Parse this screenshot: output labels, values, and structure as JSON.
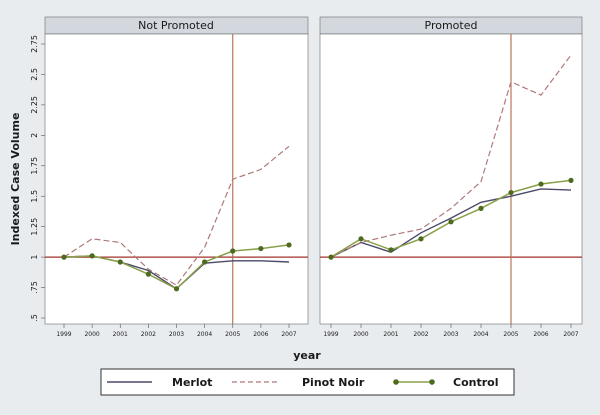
{
  "chart_data": {
    "type": "line",
    "ylabel": "Indexed Case Volume",
    "xlabel": "year",
    "y_range": [
      0.5,
      2.75
    ],
    "y_ticks": [
      "2.75",
      "2.5",
      "2.25",
      "2",
      "1.75",
      "1.5",
      "1.25",
      "1",
      ".75",
      ".5"
    ],
    "y_tick_values": [
      2.75,
      2.5,
      2.25,
      2,
      1.75,
      1.5,
      1.25,
      1,
      0.75,
      0.5
    ],
    "x": [
      1999,
      2000,
      2001,
      2002,
      2003,
      2004,
      2005,
      2006,
      2007
    ],
    "x_tick_labels": [
      "1999",
      "2000",
      "2001",
      "2002",
      "2003",
      "2004",
      "2005",
      "2006",
      "2007"
    ],
    "reference_line_y": 1.0,
    "vertical_line_x": 2005,
    "colors": {
      "merlot": "#4a4a6a",
      "pinot": "#b07878",
      "control": "#8aa04a",
      "control_marker": "#4d6b1e",
      "reference": "#a0302a",
      "vertical": "#b56a4a",
      "panel_bg": "#ffffff",
      "outer_bg": "#e9ecef",
      "strip_bg": "#d3d8de"
    },
    "panels": [
      {
        "title": "Not Promoted",
        "series": [
          {
            "name": "Merlot",
            "values": [
              1.0,
              1.01,
              0.96,
              0.89,
              0.74,
              0.95,
              0.97,
              0.97,
              0.96
            ]
          },
          {
            "name": "Pinot Noir",
            "values": [
              1.0,
              1.15,
              1.12,
              0.9,
              0.77,
              1.08,
              1.64,
              1.72,
              1.91
            ]
          },
          {
            "name": "Control",
            "values": [
              1.0,
              1.01,
              0.96,
              0.86,
              0.74,
              0.96,
              1.05,
              1.07,
              1.1
            ]
          }
        ]
      },
      {
        "title": "Promoted",
        "series": [
          {
            "name": "Merlot",
            "values": [
              1.0,
              1.12,
              1.04,
              1.2,
              1.32,
              1.45,
              1.5,
              1.56,
              1.55
            ]
          },
          {
            "name": "Pinot Noir",
            "values": [
              1.0,
              1.12,
              1.18,
              1.23,
              1.4,
              1.62,
              2.44,
              2.33,
              2.66
            ]
          },
          {
            "name": "Control",
            "values": [
              1.0,
              1.15,
              1.06,
              1.15,
              1.29,
              1.4,
              1.53,
              1.6,
              1.63
            ]
          }
        ]
      }
    ],
    "legend": {
      "placement": "bottom",
      "entries": [
        {
          "name": "Merlot",
          "style": "solid"
        },
        {
          "name": "Pinot Noir",
          "style": "dashed"
        },
        {
          "name": "Control",
          "style": "solid-with-markers"
        }
      ]
    }
  }
}
